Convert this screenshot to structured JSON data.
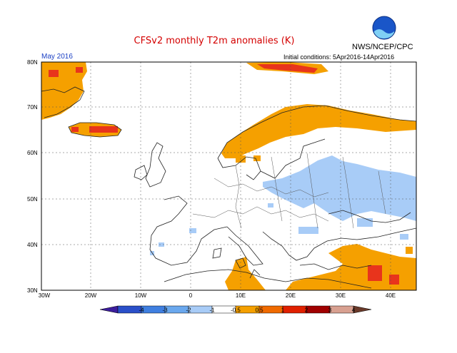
{
  "header": {
    "title": "CFSv2 monthly T2m anomalies (K)",
    "org": "NWS/NCEP/CPC",
    "month": "May 2016",
    "init": "Initial conditions: 5Apr2016-14Apr2016",
    "logo_text": "NOAA"
  },
  "axes": {
    "lat_labels": [
      "80N",
      "70N",
      "60N",
      "50N",
      "40N",
      "30N"
    ],
    "lon_labels": [
      "30W",
      "20W",
      "10W",
      "0",
      "10E",
      "20E",
      "30E",
      "40E"
    ]
  },
  "colorbar": {
    "ticks": [
      "-4",
      "-3",
      "-2",
      "-1",
      "-0.5",
      "0.5",
      "1",
      "2",
      "3",
      "4"
    ],
    "colors": [
      "#3c1d9c",
      "#2a4fc9",
      "#3f7fe0",
      "#6aa8ee",
      "#a8ccf7",
      "#ffffff",
      "#f5a000",
      "#f06a00",
      "#e02000",
      "#a00000",
      "#d8a090",
      "#6a3a2a"
    ]
  },
  "regions": {
    "warm_color": "#f5a000",
    "hot_color": "#e8341c",
    "cool_color": "#a8ccf7"
  }
}
